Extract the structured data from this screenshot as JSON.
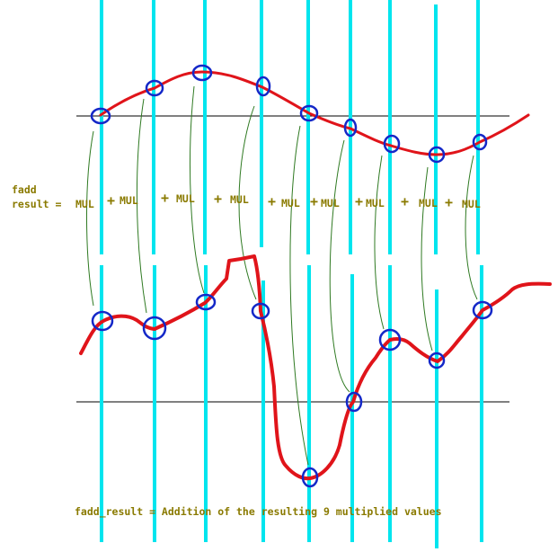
{
  "colors": {
    "background": "#ffffff",
    "sample_line": "#00e5ee",
    "curve": "#e0141a",
    "sample_marker": "#1428c8",
    "connector": "#2f7a22",
    "axis": "#000000",
    "text": "#8a7a00"
  },
  "labels": {
    "fadd_line1": "fadd",
    "fadd_line2": "result = ",
    "mul": "MUL",
    "plus": "+",
    "bottom_caption": "fadd_result = Addition of the resulting 9 multiplied values"
  },
  "sample_count": 9
}
